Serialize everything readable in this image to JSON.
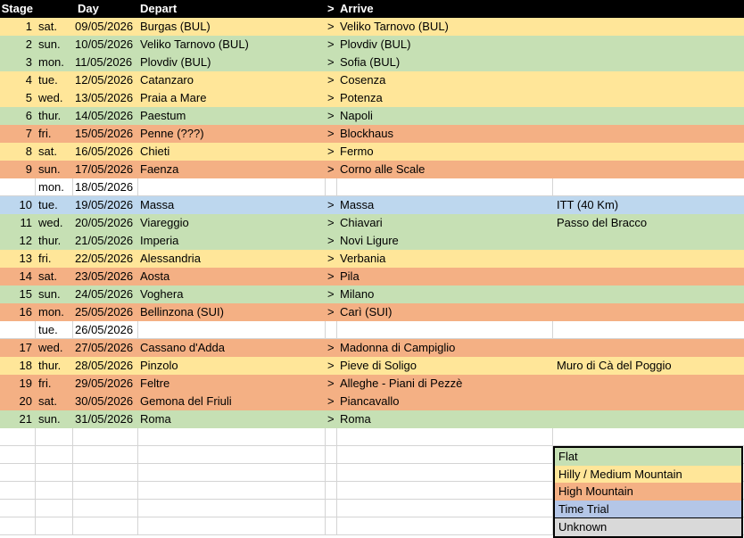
{
  "headers": {
    "stage": "Stage",
    "day": "Day",
    "depart": "Depart",
    "sep": ">",
    "arrive": "Arrive"
  },
  "colors": {
    "flat": "#C6E0B4",
    "hilly": "#FFE699",
    "high": "#F4B084",
    "tt": "#BDD7EE",
    "tt_legend": "#B4C6E7",
    "unknown": "#D9D9D9",
    "rest": "#FFFFFF"
  },
  "rows": [
    {
      "stage": "1",
      "day": "sat.",
      "date": "09/05/2026",
      "depart": "Burgas (BUL)",
      "sep": ">",
      "arrive": "Veliko Tarnovo (BUL)",
      "note": "",
      "type": "hilly"
    },
    {
      "stage": "2",
      "day": "sun.",
      "date": "10/05/2026",
      "depart": "Veliko Tarnovo (BUL)",
      "sep": ">",
      "arrive": "Plovdiv (BUL)",
      "note": "",
      "type": "flat"
    },
    {
      "stage": "3",
      "day": "mon.",
      "date": "11/05/2026",
      "depart": "Plovdiv (BUL)",
      "sep": ">",
      "arrive": "Sofia (BUL)",
      "note": "",
      "type": "flat"
    },
    {
      "stage": "4",
      "day": "tue.",
      "date": "12/05/2026",
      "depart": "Catanzaro",
      "sep": ">",
      "arrive": "Cosenza",
      "note": "",
      "type": "hilly"
    },
    {
      "stage": "5",
      "day": "wed.",
      "date": "13/05/2026",
      "depart": "Praia a Mare",
      "sep": ">",
      "arrive": "Potenza",
      "note": "",
      "type": "hilly"
    },
    {
      "stage": "6",
      "day": "thur.",
      "date": "14/05/2026",
      "depart": "Paestum",
      "sep": ">",
      "arrive": "Napoli",
      "note": "",
      "type": "flat"
    },
    {
      "stage": "7",
      "day": "fri.",
      "date": "15/05/2026",
      "depart": "Penne (???)",
      "sep": ">",
      "arrive": "Blockhaus",
      "note": "",
      "type": "high"
    },
    {
      "stage": "8",
      "day": "sat.",
      "date": "16/05/2026",
      "depart": "Chieti",
      "sep": ">",
      "arrive": "Fermo",
      "note": "",
      "type": "hilly"
    },
    {
      "stage": "9",
      "day": "sun.",
      "date": "17/05/2026",
      "depart": "Faenza",
      "sep": ">",
      "arrive": "Corno alle Scale",
      "note": "",
      "type": "high"
    },
    {
      "stage": "",
      "day": "mon.",
      "date": "18/05/2026",
      "depart": "",
      "sep": "",
      "arrive": "",
      "note": "",
      "type": "rest"
    },
    {
      "stage": "10",
      "day": "tue.",
      "date": "19/05/2026",
      "depart": "Massa",
      "sep": ">",
      "arrive": "Massa",
      "note": "ITT (40 Km)",
      "type": "tt"
    },
    {
      "stage": "11",
      "day": "wed.",
      "date": "20/05/2026",
      "depart": "Viareggio",
      "sep": ">",
      "arrive": "Chiavari",
      "note": "Passo del Bracco",
      "type": "flat"
    },
    {
      "stage": "12",
      "day": "thur.",
      "date": "21/05/2026",
      "depart": "Imperia",
      "sep": ">",
      "arrive": "Novi Ligure",
      "note": "",
      "type": "flat"
    },
    {
      "stage": "13",
      "day": "fri.",
      "date": "22/05/2026",
      "depart": "Alessandria",
      "sep": ">",
      "arrive": "Verbania",
      "note": "",
      "type": "hilly"
    },
    {
      "stage": "14",
      "day": "sat.",
      "date": "23/05/2026",
      "depart": "Aosta",
      "sep": ">",
      "arrive": "Pila",
      "note": "",
      "type": "high"
    },
    {
      "stage": "15",
      "day": "sun.",
      "date": "24/05/2026",
      "depart": "Voghera",
      "sep": ">",
      "arrive": "Milano",
      "note": "",
      "type": "flat"
    },
    {
      "stage": "16",
      "day": "mon.",
      "date": "25/05/2026",
      "depart": "Bellinzona (SUI)",
      "sep": ">",
      "arrive": "Carì (SUI)",
      "note": "",
      "type": "high"
    },
    {
      "stage": "",
      "day": "tue.",
      "date": "26/05/2026",
      "depart": "",
      "sep": "",
      "arrive": "",
      "note": "",
      "type": "rest"
    },
    {
      "stage": "17",
      "day": "wed.",
      "date": "27/05/2026",
      "depart": "Cassano d'Adda",
      "sep": ">",
      "arrive": "Madonna di Campiglio",
      "note": "",
      "type": "high"
    },
    {
      "stage": "18",
      "day": "thur.",
      "date": "28/05/2026",
      "depart": "Pinzolo",
      "sep": ">",
      "arrive": "Pieve di Soligo",
      "note": "Muro di Cà del Poggio",
      "type": "hilly"
    },
    {
      "stage": "19",
      "day": "fri.",
      "date": "29/05/2026",
      "depart": "Feltre",
      "sep": ">",
      "arrive": "Alleghe - Piani di Pezzè",
      "note": "",
      "type": "high"
    },
    {
      "stage": "20",
      "day": "sat.",
      "date": "30/05/2026",
      "depart": "Gemona del Friuli",
      "sep": ">",
      "arrive": "Piancavallo",
      "note": "",
      "type": "high"
    },
    {
      "stage": "21",
      "day": "sun.",
      "date": "31/05/2026",
      "depart": "Roma",
      "sep": ">",
      "arrive": "Roma",
      "note": "",
      "type": "flat"
    }
  ],
  "legend": {
    "flat": "Flat",
    "hilly": "Hilly / Medium Mountain",
    "high": "High Mountain",
    "tt": "Time Trial",
    "unknown": "Unknown"
  }
}
